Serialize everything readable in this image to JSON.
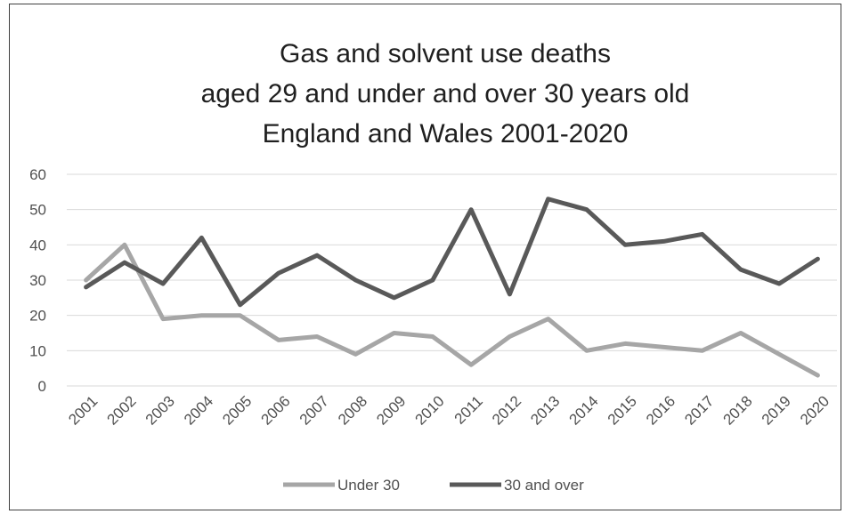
{
  "chart_data": {
    "type": "line",
    "title_lines": [
      "Gas and solvent use deaths",
      "aged 29 and under and over 30 years old",
      "England and Wales 2001-2020"
    ],
    "x": [
      "2001",
      "2002",
      "2003",
      "2004",
      "2005",
      "2006",
      "2007",
      "2008",
      "2009",
      "2010",
      "2011",
      "2012",
      "2013",
      "2014",
      "2015",
      "2016",
      "2017",
      "2018",
      "2019",
      "2020"
    ],
    "yticks": [
      "0",
      "10",
      "20",
      "30",
      "40",
      "50",
      "60"
    ],
    "ylim": [
      0,
      60
    ],
    "grid": true,
    "legend_position": "bottom",
    "series": [
      {
        "name": "Under 30",
        "color": "#a6a6a6",
        "values": [
          30,
          40,
          19,
          20,
          20,
          13,
          14,
          9,
          15,
          14,
          6,
          14,
          19,
          10,
          12,
          11,
          10,
          15,
          9,
          3
        ]
      },
      {
        "name": "30 and over",
        "color": "#595959",
        "values": [
          28,
          35,
          29,
          42,
          23,
          32,
          37,
          30,
          25,
          30,
          50,
          26,
          53,
          50,
          40,
          41,
          43,
          33,
          29,
          36
        ]
      }
    ]
  }
}
